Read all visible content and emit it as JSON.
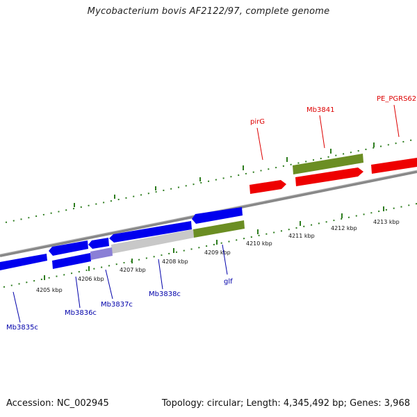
{
  "header": {
    "title": "Mycobacterium bovis AF2122/97, complete genome"
  },
  "footer": {
    "accession": "Accession: NC_002945",
    "summary": "Topology: circular; Length: 4,345,492 bp; Genes: 3,968"
  },
  "colors": {
    "backbone": "#7a7a7a",
    "tick": "#2e7d1f",
    "forward_gene": "#ff0000",
    "reverse_gene": "#0000ee",
    "pseudo_gene": "#c0c0c0",
    "rna_gene": "#6b8e23",
    "forward_label": "#dd0000",
    "reverse_label": "#0000aa"
  },
  "scale": {
    "unit": "kbp",
    "ticks": [
      "4205 kbp",
      "4206 kbp",
      "4207 kbp",
      "4208 kbp",
      "4209 kbp",
      "4210 kbp",
      "4211 kbp",
      "4212 kbp",
      "4213 kbp"
    ]
  },
  "forward_labels": [
    "pirG",
    "Mb3841",
    "PE_PGRS62"
  ],
  "reverse_labels": [
    "Mb3835c",
    "Mb3836c",
    "Mb3837c",
    "Mb3838c",
    "glf"
  ]
}
